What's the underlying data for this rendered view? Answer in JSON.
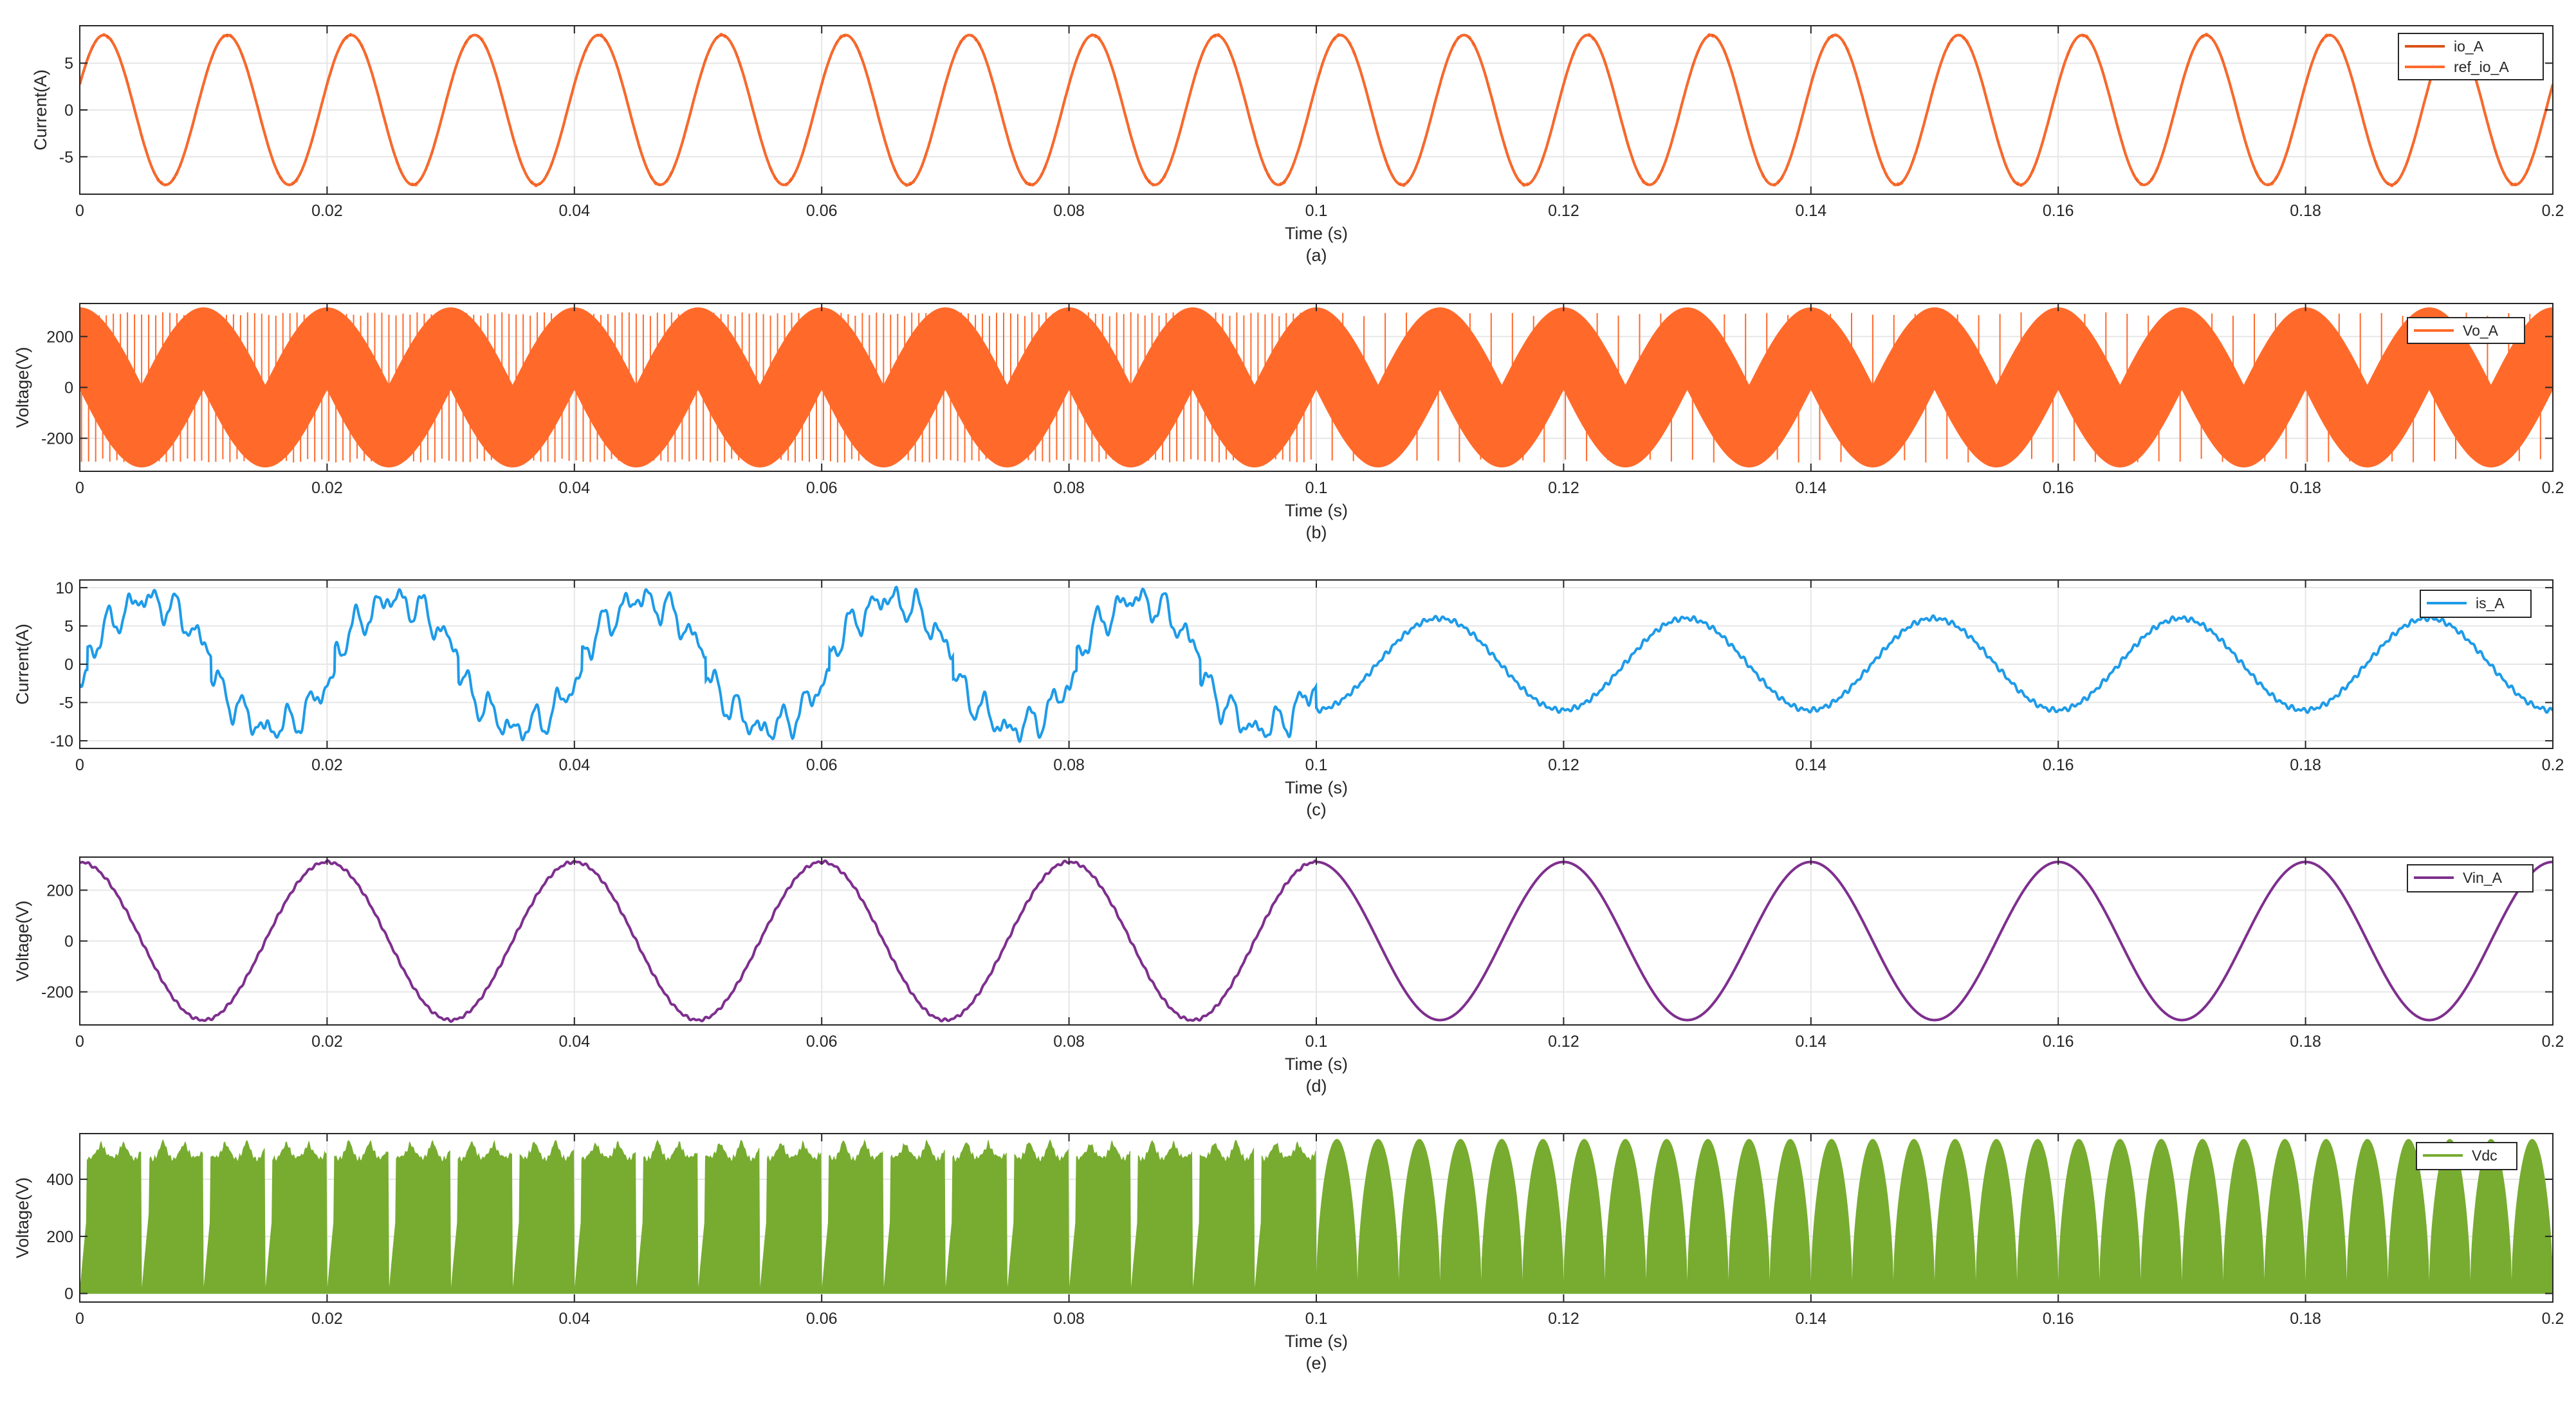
{
  "figure": {
    "panels": [
      {
        "id": "a",
        "caption": "(a)",
        "xlabel": "Time (s)",
        "ylabel": "Current(A)",
        "xticks": [
          "0",
          "0.02",
          "0.04",
          "0.06",
          "0.08",
          "0.1",
          "0.12",
          "0.14",
          "0.16",
          "0.18",
          "0.2"
        ],
        "yticks": [
          "-5",
          "0",
          "5"
        ],
        "legend": [
          "io_A",
          "ref_io_A"
        ]
      },
      {
        "id": "b",
        "caption": "(b)",
        "xlabel": "Time (s)",
        "ylabel": "Voltage(V)",
        "xticks": [
          "0",
          "0.02",
          "0.04",
          "0.06",
          "0.08",
          "0.1",
          "0.12",
          "0.14",
          "0.16",
          "0.18",
          "0.2"
        ],
        "yticks": [
          "-200",
          "0",
          "200"
        ],
        "legend": [
          "Vo_A"
        ]
      },
      {
        "id": "c",
        "caption": "(c)",
        "xlabel": "Time (s)",
        "ylabel": "Current(A)",
        "xticks": [
          "0",
          "0.02",
          "0.04",
          "0.06",
          "0.08",
          "0.1",
          "0.12",
          "0.14",
          "0.16",
          "0.18",
          "0.2"
        ],
        "yticks": [
          "-10",
          "-5",
          "0",
          "5",
          "10"
        ],
        "legend": [
          "is_A"
        ]
      },
      {
        "id": "d",
        "caption": "(d)",
        "xlabel": "Time (s)",
        "ylabel": "Voltage(V)",
        "xticks": [
          "0",
          "0.02",
          "0.04",
          "0.06",
          "0.08",
          "0.1",
          "0.12",
          "0.14",
          "0.16",
          "0.18",
          "0.2"
        ],
        "yticks": [
          "-200",
          "0",
          "200"
        ],
        "legend": [
          "Vin_A"
        ]
      },
      {
        "id": "e",
        "caption": "(e)",
        "xlabel": "Time (s)",
        "ylabel": "Voltage(V)",
        "xticks": [
          "0",
          "0.02",
          "0.04",
          "0.06",
          "0.08",
          "0.1",
          "0.12",
          "0.14",
          "0.16",
          "0.18",
          "0.2"
        ],
        "yticks": [
          "0",
          "200",
          "400"
        ],
        "legend": [
          "Vdc"
        ]
      }
    ]
  },
  "chart_data": [
    {
      "type": "line",
      "caption": "(a)",
      "xlabel": "Time (s)",
      "ylabel": "Current(A)",
      "xlim": [
        0,
        0.2
      ],
      "ylim": [
        -9,
        9
      ],
      "grid": true,
      "legend_position": "top-right",
      "series": [
        {
          "name": "io_A",
          "color": "#D95319",
          "waveform": "sine",
          "amplitude": 8,
          "frequency_hz": 100,
          "offset": 0
        },
        {
          "name": "ref_io_A",
          "color": "#FF6A2B",
          "waveform": "sine",
          "amplitude": 8,
          "frequency_hz": 100,
          "offset": 0
        }
      ]
    },
    {
      "type": "line",
      "caption": "(b)",
      "xlabel": "Time (s)",
      "ylabel": "Voltage(V)",
      "xlim": [
        0,
        0.2
      ],
      "ylim": [
        -330,
        330
      ],
      "grid": true,
      "legend_position": "top-right",
      "series": [
        {
          "name": "Vo_A",
          "color": "#FF6A2B",
          "waveform": "pwm",
          "envelope_amplitude": 311,
          "modulation_frequency_hz": 100,
          "supply_frequency_hz": 50
        }
      ]
    },
    {
      "type": "line",
      "caption": "(c)",
      "xlabel": "Time (s)",
      "ylabel": "Current(A)",
      "xlim": [
        0,
        0.2
      ],
      "ylim": [
        -11,
        11
      ],
      "grid": true,
      "legend_position": "top-right",
      "series": [
        {
          "name": "is_A",
          "color": "#1E9BE8",
          "waveform": "distorted-then-sine",
          "amplitude_before_0_1s": 9,
          "peak_before_0_1s": 10.5,
          "amplitude_after_0_1s": 6,
          "frequency_hz": 50,
          "transition_time": 0.1
        }
      ]
    },
    {
      "type": "line",
      "caption": "(d)",
      "xlabel": "Time (s)",
      "ylabel": "Voltage(V)",
      "xlim": [
        0,
        0.2
      ],
      "ylim": [
        -330,
        330
      ],
      "grid": true,
      "legend_position": "top-right",
      "series": [
        {
          "name": "Vin_A",
          "color": "#7E2F8E",
          "waveform": "cosine",
          "amplitude": 311,
          "frequency_hz": 50
        }
      ]
    },
    {
      "type": "line",
      "caption": "(e)",
      "xlabel": "Time (s)",
      "ylabel": "Voltage(V)",
      "xlim": [
        0,
        0.2
      ],
      "ylim": [
        -30,
        560
      ],
      "grid": true,
      "legend_position": "top-right",
      "series": [
        {
          "name": "Vdc",
          "color": "#77AC30",
          "waveform": "switched-dc",
          "peak": 540,
          "min": 0,
          "dip_frequency_hz_before_0_1s": 200,
          "dip_frequency_hz_after_0_1s": 300,
          "transition_time": 0.1
        }
      ]
    }
  ]
}
